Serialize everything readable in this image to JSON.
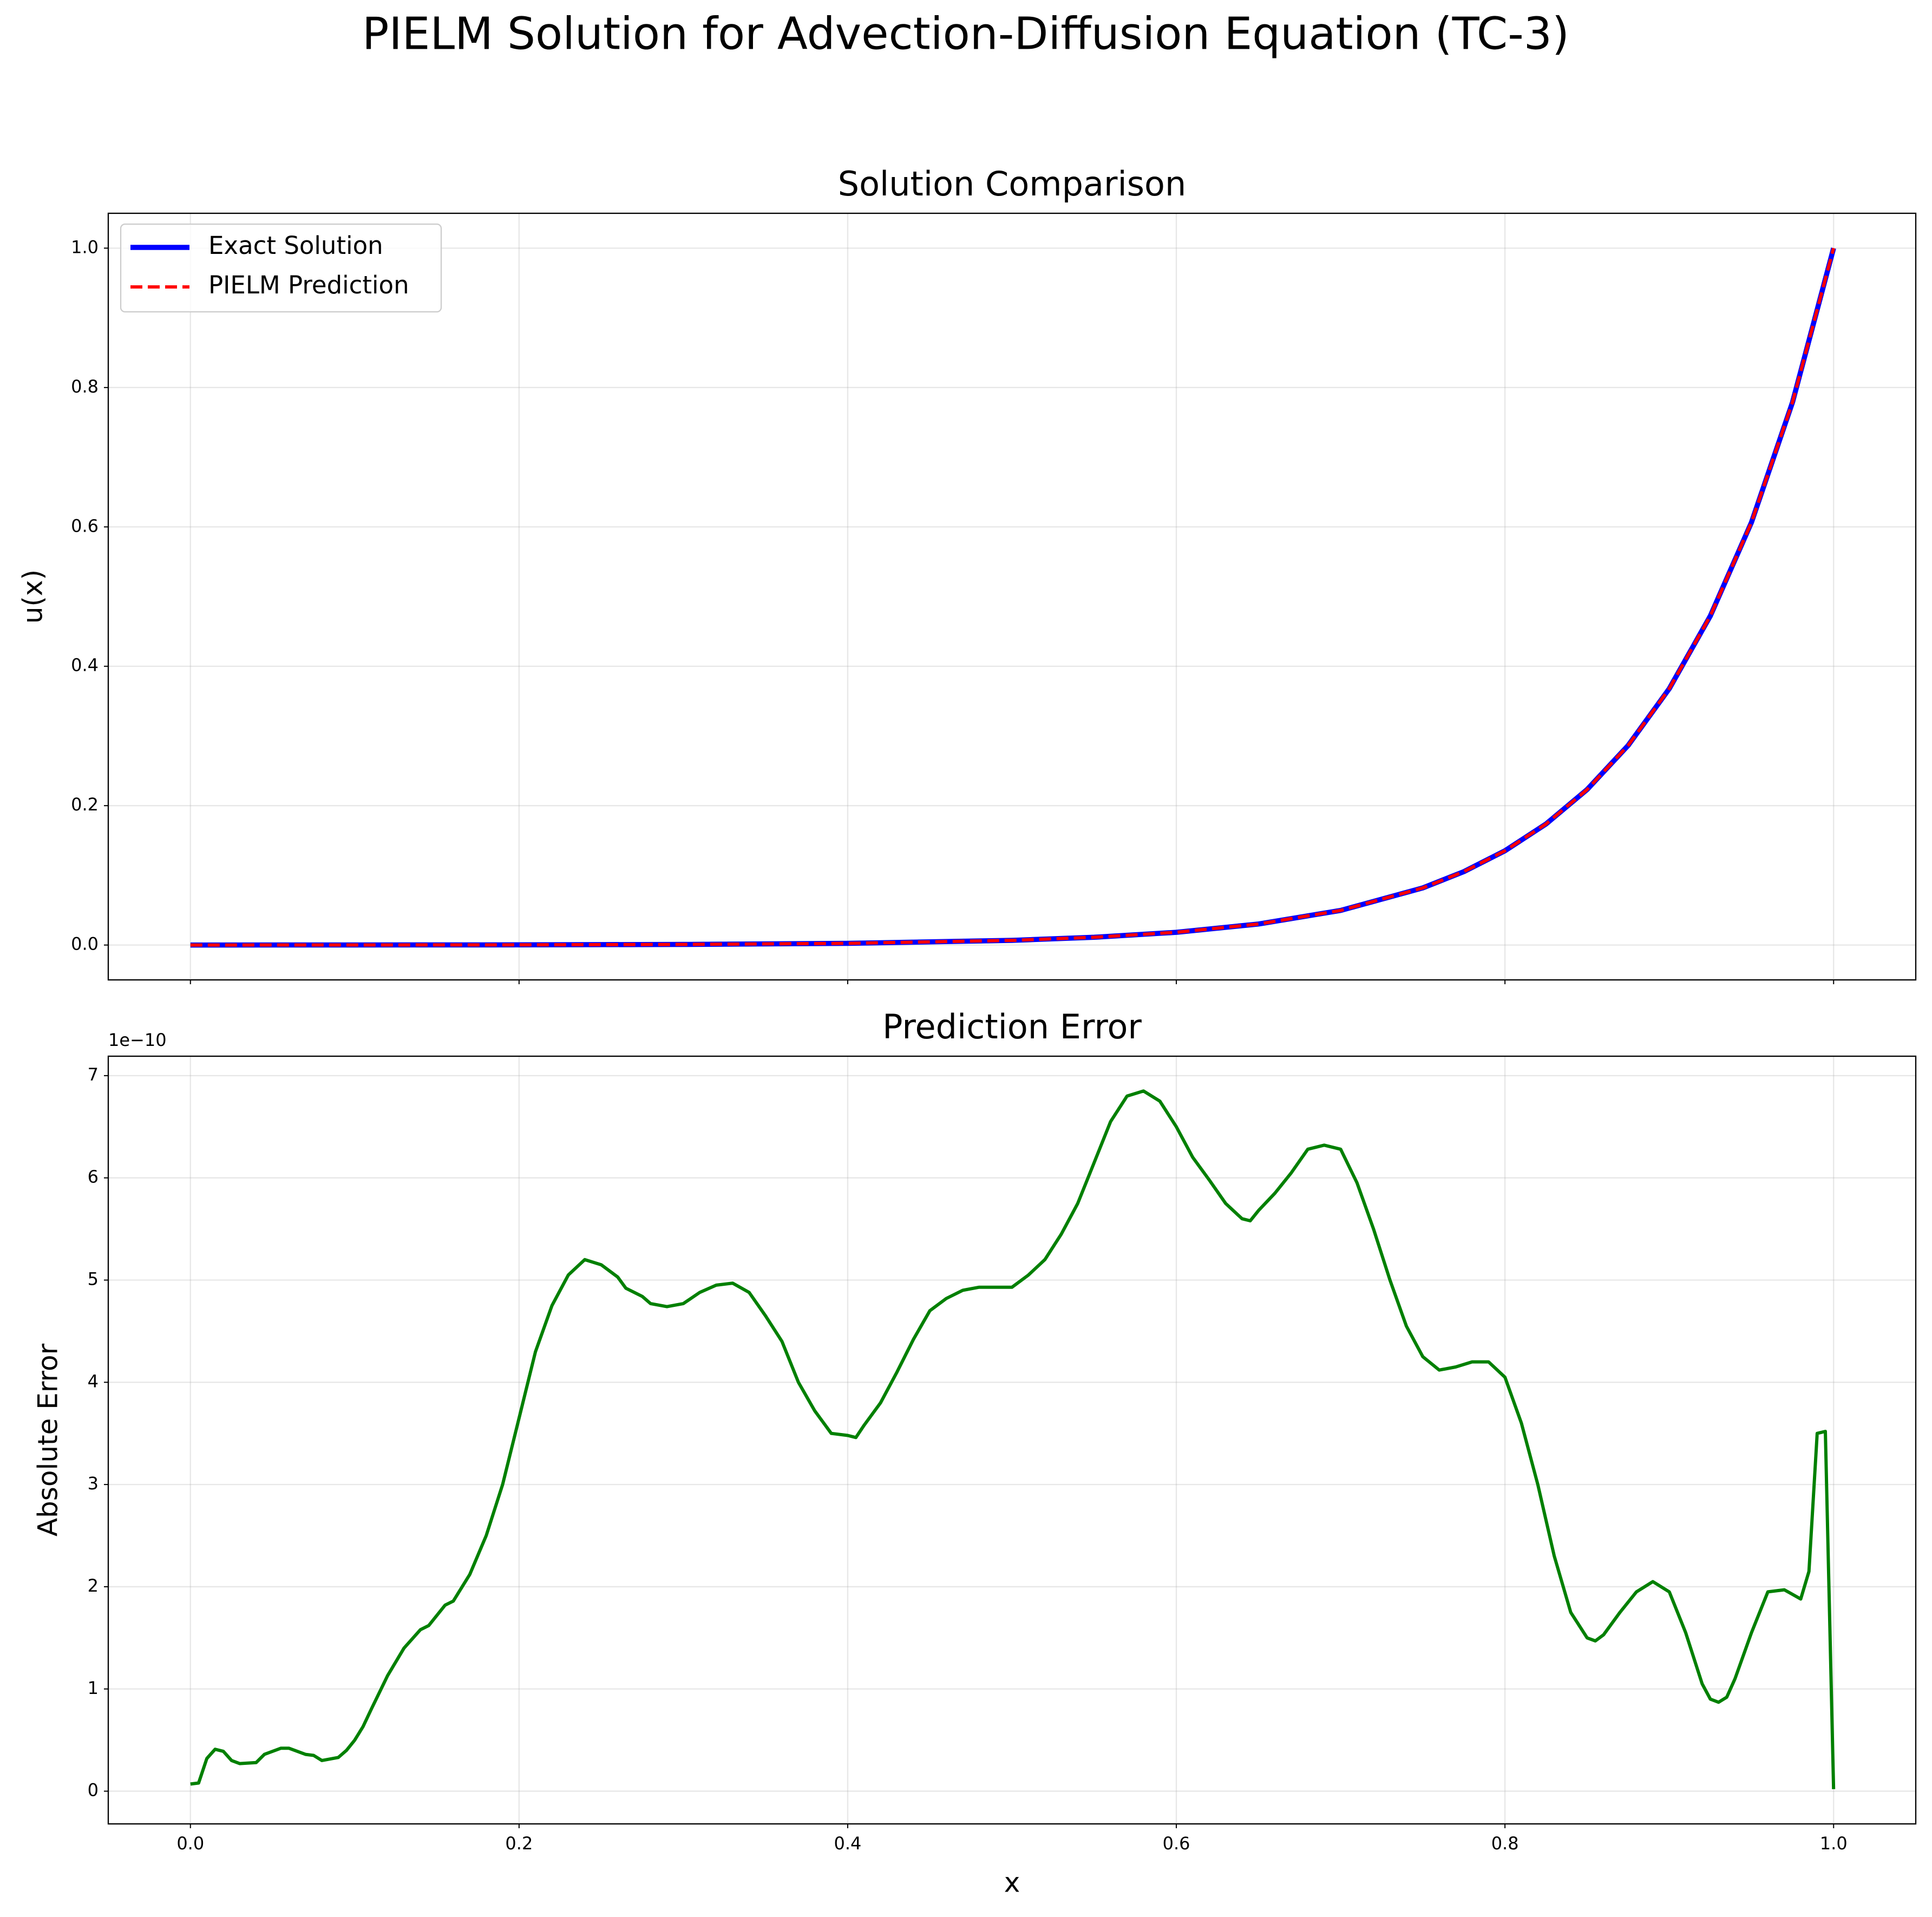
{
  "title": "PIELM Solution for Advection-Diffusion Equation (TC-3)",
  "chart_data": [
    {
      "type": "line",
      "title": "Solution Comparison",
      "ylabel": "u(x)",
      "x": [
        0,
        0.1,
        0.2,
        0.3,
        0.4,
        0.5,
        0.55,
        0.6,
        0.65,
        0.7,
        0.75,
        0.775,
        0.8,
        0.825,
        0.85,
        0.875,
        0.9,
        0.925,
        0.95,
        0.975,
        1.0
      ],
      "series": [
        {
          "name": "Exact Solution",
          "color": "#0000ff",
          "style": "solid",
          "values": [
            0,
            7.8e-05,
            0.00029,
            0.00087,
            0.00243,
            0.00669,
            0.0111,
            0.01827,
            0.0302,
            0.0497,
            0.082,
            0.1054,
            0.1353,
            0.1737,
            0.2231,
            0.2865,
            0.3679,
            0.4724,
            0.6065,
            0.7788,
            1.0
          ]
        },
        {
          "name": "PIELM Prediction",
          "color": "#ff0000",
          "style": "dashed",
          "values": [
            0,
            7.8e-05,
            0.00029,
            0.00087,
            0.00243,
            0.00669,
            0.0111,
            0.01827,
            0.0302,
            0.0497,
            0.082,
            0.1054,
            0.1353,
            0.1737,
            0.2231,
            0.2865,
            0.3679,
            0.4724,
            0.6065,
            0.7788,
            1.0
          ]
        }
      ],
      "legend": "upper left",
      "grid": true,
      "xlim": [
        -0.05,
        1.05
      ],
      "ylim": [
        -0.05,
        1.05
      ],
      "xticks": [
        {
          "value": 0,
          "label": "0.0"
        },
        0.2,
        0.4,
        0.6,
        0.8,
        {
          "value": 1,
          "label": "1.0"
        }
      ],
      "yticks": [
        {
          "value": 0,
          "label": "0.0"
        },
        0.2,
        0.4,
        0.6,
        0.8,
        {
          "value": 1,
          "label": "1.0"
        }
      ]
    },
    {
      "type": "line",
      "title": "Prediction Error",
      "xlabel": "x",
      "ylabel": "Absolute Error",
      "offset_text": "1e−10",
      "color": "#008000",
      "grid": true,
      "x": [
        0,
        0.005,
        0.01,
        0.015,
        0.02,
        0.025,
        0.03,
        0.04,
        0.045,
        0.055,
        0.06,
        0.07,
        0.075,
        0.08,
        0.09,
        0.095,
        0.1,
        0.105,
        0.11,
        0.12,
        0.13,
        0.14,
        0.145,
        0.155,
        0.16,
        0.17,
        0.18,
        0.19,
        0.2,
        0.21,
        0.22,
        0.23,
        0.24,
        0.25,
        0.26,
        0.265,
        0.275,
        0.28,
        0.29,
        0.3,
        0.31,
        0.32,
        0.33,
        0.34,
        0.35,
        0.36,
        0.37,
        0.38,
        0.39,
        0.4,
        0.405,
        0.41,
        0.42,
        0.43,
        0.44,
        0.45,
        0.46,
        0.47,
        0.48,
        0.49,
        0.5,
        0.51,
        0.52,
        0.53,
        0.54,
        0.55,
        0.56,
        0.57,
        0.58,
        0.59,
        0.6,
        0.61,
        0.62,
        0.63,
        0.64,
        0.645,
        0.65,
        0.66,
        0.67,
        0.68,
        0.69,
        0.7,
        0.71,
        0.72,
        0.73,
        0.74,
        0.75,
        0.76,
        0.77,
        0.78,
        0.79,
        0.8,
        0.81,
        0.82,
        0.83,
        0.84,
        0.85,
        0.855,
        0.86,
        0.87,
        0.88,
        0.89,
        0.9,
        0.91,
        0.92,
        0.925,
        0.93,
        0.935,
        0.94,
        0.95,
        0.96,
        0.97,
        0.98,
        0.985,
        0.99,
        0.995,
        1.0
      ],
      "values": [
        0.07,
        0.08,
        0.32,
        0.41,
        0.39,
        0.3,
        0.27,
        0.28,
        0.36,
        0.42,
        0.42,
        0.36,
        0.35,
        0.3,
        0.33,
        0.4,
        0.5,
        0.63,
        0.8,
        1.13,
        1.4,
        1.58,
        1.62,
        1.82,
        1.86,
        2.12,
        2.5,
        3.0,
        3.65,
        4.3,
        4.75,
        5.05,
        5.2,
        5.15,
        5.03,
        4.92,
        4.84,
        4.77,
        4.74,
        4.77,
        4.88,
        4.95,
        4.97,
        4.88,
        4.65,
        4.4,
        4.0,
        3.72,
        3.5,
        3.48,
        3.46,
        3.58,
        3.8,
        4.1,
        4.42,
        4.7,
        4.82,
        4.9,
        4.93,
        4.93,
        4.93,
        5.05,
        5.2,
        5.45,
        5.75,
        6.15,
        6.55,
        6.8,
        6.85,
        6.75,
        6.5,
        6.2,
        5.98,
        5.75,
        5.6,
        5.58,
        5.68,
        5.85,
        6.05,
        6.28,
        6.32,
        6.28,
        5.95,
        5.5,
        5.0,
        4.55,
        4.25,
        4.12,
        4.15,
        4.2,
        4.2,
        4.05,
        3.6,
        3.0,
        2.3,
        1.75,
        1.5,
        1.47,
        1.53,
        1.75,
        1.95,
        2.05,
        1.95,
        1.55,
        1.05,
        0.9,
        0.87,
        0.92,
        1.1,
        1.55,
        1.95,
        1.97,
        1.88,
        2.15,
        3.5,
        3.52,
        0.02
      ],
      "xlim": [
        -0.05,
        1.05
      ],
      "ylim": [
        -0.32,
        7.19
      ],
      "xticks": [
        {
          "value": 0,
          "label": "0.0"
        },
        0.2,
        0.4,
        0.6,
        0.8,
        {
          "value": 1,
          "label": "1.0"
        }
      ],
      "yticks": [
        0,
        1,
        2,
        3,
        4,
        5,
        6,
        7
      ]
    }
  ]
}
